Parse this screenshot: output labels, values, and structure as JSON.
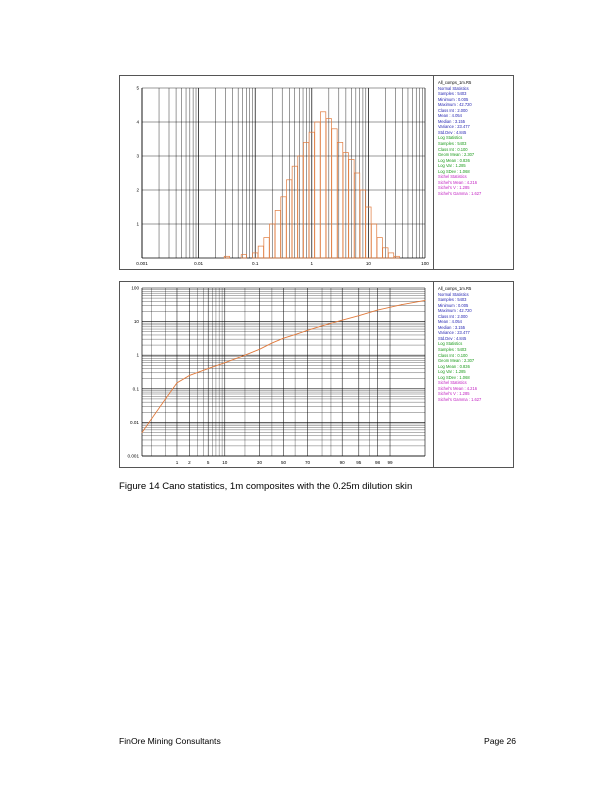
{
  "figure": {
    "caption": "Figure 14 Cano statistics, 1m composites with the 0.25m dilution skin"
  },
  "footer": {
    "company": "FinOre Mining Consultants",
    "page": "Page 26"
  },
  "stats_panel": {
    "title": "All_comps_1m.R5",
    "normal": {
      "heading": "Normal Statistics",
      "lines": [
        "Samples : 5403",
        "Minimum : 0.005",
        "Maximum : 42.720",
        "Class Int : 2.000",
        "Mean : 4.054",
        "Median : 3.155",
        "Variance : 23.477",
        "Std.Dev : 4.845"
      ]
    },
    "log": {
      "heading": "Log Statistics",
      "lines": [
        "Samples : 5403",
        "Class Int : 0.100",
        "Geom Mean : 2.307",
        "Log Mean : 0.836",
        "Log Var : 1.285",
        "Log SDev : 1.068"
      ]
    },
    "sichel": {
      "heading": "Sichel Statistics",
      "lines": [
        "Sichel's Mean : 4.216",
        "Sichel's V : 1.285",
        "Sichel's Gamma : 1.627"
      ]
    },
    "colors": {
      "title": "#000000",
      "normal": "#1f1fb0",
      "log": "#1a9a1a",
      "sichel": "#c01cc0"
    }
  },
  "chart_data": [
    {
      "type": "bar",
      "subtype": "histogram",
      "x_scale": "log",
      "xlim": [
        0.001,
        100
      ],
      "ylim": [
        0,
        5
      ],
      "x_tick_labels": [
        "0.001",
        "0.01",
        "0.1",
        "1",
        "10",
        "100"
      ],
      "y_tick_labels": [
        "1",
        "2",
        "3",
        "4",
        "5"
      ],
      "y_ticks": [
        1,
        2,
        3,
        4,
        5
      ],
      "bar_color": "#e07a3c",
      "bins_log10": [
        -1.5,
        -1.2,
        -1.0,
        -0.9,
        -0.8,
        -0.7,
        -0.6,
        -0.5,
        -0.4,
        -0.3,
        -0.2,
        -0.1,
        0.0,
        0.1,
        0.2,
        0.3,
        0.4,
        0.5,
        0.6,
        0.7,
        0.8,
        0.9,
        1.0,
        1.1,
        1.2,
        1.3,
        1.4,
        1.5
      ],
      "percent": [
        0.05,
        0.1,
        0.15,
        0.35,
        0.6,
        1.0,
        1.4,
        1.8,
        2.3,
        2.7,
        3.0,
        3.4,
        3.7,
        4.0,
        4.3,
        4.1,
        3.8,
        3.4,
        3.1,
        2.9,
        2.5,
        2.0,
        1.5,
        1.0,
        0.6,
        0.3,
        0.15,
        0.05
      ],
      "grid": true
    },
    {
      "type": "line",
      "subtype": "log-probability",
      "y_scale": "log",
      "ylim": [
        0.001,
        100
      ],
      "y_tick_labels": [
        "100",
        "10",
        "1",
        "0.1",
        "0.01",
        "0.001"
      ],
      "x_tick_labels": [
        "1",
        "2",
        "5",
        "10",
        "30",
        "50",
        "70",
        "90",
        "95",
        "98",
        "99"
      ],
      "x_ticks": [
        1,
        2,
        5,
        10,
        30,
        50,
        70,
        90,
        95,
        98,
        99
      ],
      "line_color": "#e07a3c",
      "x": [
        0.1,
        0.5,
        1,
        2,
        5,
        10,
        20,
        30,
        40,
        50,
        60,
        70,
        80,
        90,
        95,
        98,
        99.5,
        99.9
      ],
      "y": [
        0.005,
        0.05,
        0.15,
        0.25,
        0.4,
        0.6,
        1.0,
        1.5,
        2.3,
        3.2,
        4.1,
        5.5,
        7.5,
        11,
        15,
        22,
        32,
        42.72
      ],
      "grid": true
    }
  ]
}
